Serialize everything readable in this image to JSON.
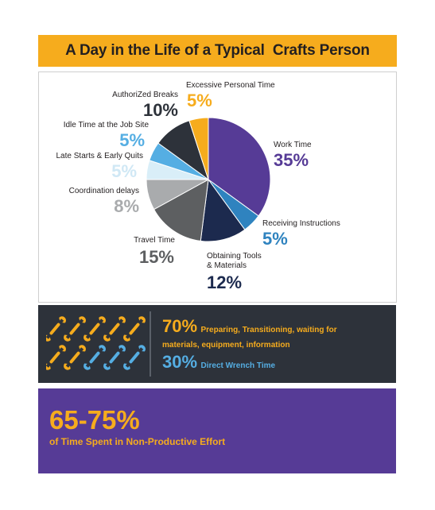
{
  "title": "A Day in the Life of a Typical  Crafts Person",
  "colors": {
    "accent": "#f6ac1d",
    "purple": "#563b96",
    "dark_panel": "#2d323a",
    "blue": "#55aee3",
    "dark_text": "#231f20"
  },
  "chart_data": {
    "type": "pie",
    "title": "A Day in the Life of a Typical  Crafts Person",
    "slices": [
      {
        "label": "Work Time",
        "value": 35,
        "display": "35%",
        "color": "#563b96"
      },
      {
        "label": "Receiving Instructions",
        "value": 5,
        "display": "5%",
        "color": "#2f83bf"
      },
      {
        "label": "Obtaining Tools\n& Materials",
        "value": 12,
        "display": "12%",
        "color": "#1c2a4e"
      },
      {
        "label": "Travel Time",
        "value": 15,
        "display": "15%",
        "color": "#5d5f61"
      },
      {
        "label": "Coordination delays",
        "value": 8,
        "display": "8%",
        "color": "#a9abad"
      },
      {
        "label": "Late Starts & Early Quits",
        "value": 5,
        "display": "5%",
        "color": "#d9eef8"
      },
      {
        "label": "Idle Time at the Job Site",
        "value": 5,
        "display": "5%",
        "color": "#55aee3"
      },
      {
        "label": "AuthoriZed Breaks",
        "value": 10,
        "display": "10%",
        "color": "#2d323a"
      },
      {
        "label": "Excessive Personal Time",
        "value": 5,
        "display": "5%",
        "color": "#f6ac1d"
      }
    ],
    "start_angle_deg": 0,
    "direction": "clockwise"
  },
  "wrenches": {
    "total": 10,
    "highlighted": 3,
    "highlight_color": "#55aee3",
    "base_color": "#f6ac1d"
  },
  "stats": {
    "nonproductive_pct": "70%",
    "nonproductive_text": "Preparing, Transitioning, waiting for",
    "nonproductive_text2": "materials, equipment, information",
    "wrench_pct": "30%",
    "wrench_text": "Direct Wrench Time"
  },
  "summary": {
    "range": "65-75%",
    "text": "of Time Spent in Non-Productive Effort"
  }
}
